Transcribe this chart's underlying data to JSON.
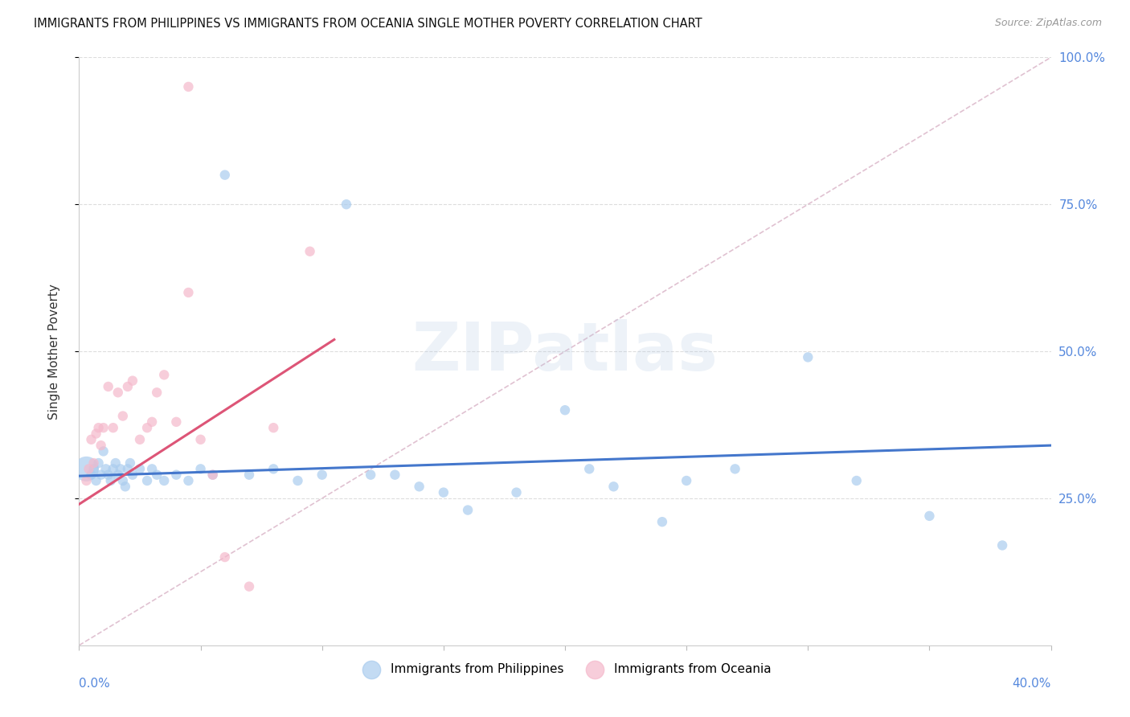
{
  "title": "IMMIGRANTS FROM PHILIPPINES VS IMMIGRANTS FROM OCEANIA SINGLE MOTHER POVERTY CORRELATION CHART",
  "source": "Source: ZipAtlas.com",
  "ylabel": "Single Mother Poverty",
  "watermark": "ZIPatlas",
  "xlim": [
    0.0,
    40.0
  ],
  "ylim": [
    0.0,
    100.0
  ],
  "philippines_color": "#aaccee",
  "oceania_color": "#f5b8cb",
  "philippines_trend_color": "#4477cc",
  "oceania_trend_color": "#dd5577",
  "ref_line_color": "#ddbbcc",
  "ref_line_style": "--",
  "yticks": [
    25,
    50,
    75,
    100
  ],
  "ytick_labels": [
    "25.0%",
    "50.0%",
    "75.0%",
    "100.0%"
  ],
  "xticks": [
    0,
    5,
    10,
    15,
    20,
    25,
    30,
    35,
    40
  ],
  "phil_trend_x": [
    0.0,
    40.0
  ],
  "phil_trend_y": [
    28.8,
    34.0
  ],
  "oce_trend_x": [
    0.0,
    10.5
  ],
  "oce_trend_y": [
    24.0,
    52.0
  ],
  "phil_x": [
    0.3,
    0.5,
    0.6,
    0.7,
    0.8,
    0.9,
    1.0,
    1.1,
    1.2,
    1.3,
    1.4,
    1.5,
    1.6,
    1.7,
    1.8,
    1.9,
    2.0,
    2.1,
    2.2,
    2.5,
    2.8,
    3.0,
    3.2,
    3.5,
    4.0,
    4.5,
    5.0,
    5.5,
    6.0,
    7.0,
    8.0,
    9.0,
    10.0,
    11.0,
    12.0,
    13.0,
    14.0,
    15.0,
    16.0,
    18.0,
    20.0,
    21.0,
    22.0,
    24.0,
    25.0,
    27.0,
    30.0,
    32.0,
    35.0,
    38.0
  ],
  "phil_y": [
    30,
    29,
    30,
    28,
    31,
    29,
    33,
    30,
    29,
    28,
    30,
    31,
    29,
    30,
    28,
    27,
    30,
    31,
    29,
    30,
    28,
    30,
    29,
    28,
    29,
    28,
    30,
    29,
    80,
    29,
    30,
    28,
    29,
    75,
    29,
    29,
    27,
    26,
    23,
    26,
    40,
    30,
    27,
    21,
    28,
    30,
    49,
    28,
    22,
    17
  ],
  "phil_sizes": [
    500,
    80,
    80,
    80,
    80,
    80,
    80,
    80,
    80,
    80,
    80,
    80,
    80,
    80,
    80,
    80,
    80,
    80,
    80,
    80,
    80,
    80,
    80,
    80,
    80,
    80,
    80,
    80,
    80,
    80,
    80,
    80,
    80,
    80,
    80,
    80,
    80,
    80,
    80,
    80,
    80,
    80,
    80,
    80,
    80,
    80,
    80,
    80,
    80,
    80
  ],
  "oce_x": [
    0.3,
    0.4,
    0.5,
    0.6,
    0.7,
    0.8,
    0.9,
    1.0,
    1.2,
    1.4,
    1.6,
    1.8,
    2.0,
    2.2,
    2.5,
    2.8,
    3.0,
    3.2,
    3.5,
    4.0,
    4.5,
    5.0,
    5.5,
    6.0,
    7.0,
    8.0,
    9.5,
    4.5
  ],
  "oce_y": [
    28,
    30,
    35,
    31,
    36,
    37,
    34,
    37,
    44,
    37,
    43,
    39,
    44,
    45,
    35,
    37,
    38,
    43,
    46,
    38,
    60,
    35,
    29,
    15,
    10,
    37,
    67,
    95
  ],
  "oce_sizes": [
    80,
    80,
    80,
    80,
    80,
    80,
    80,
    80,
    80,
    80,
    80,
    80,
    80,
    80,
    80,
    80,
    80,
    80,
    80,
    80,
    80,
    80,
    80,
    80,
    80,
    80,
    80,
    80
  ]
}
